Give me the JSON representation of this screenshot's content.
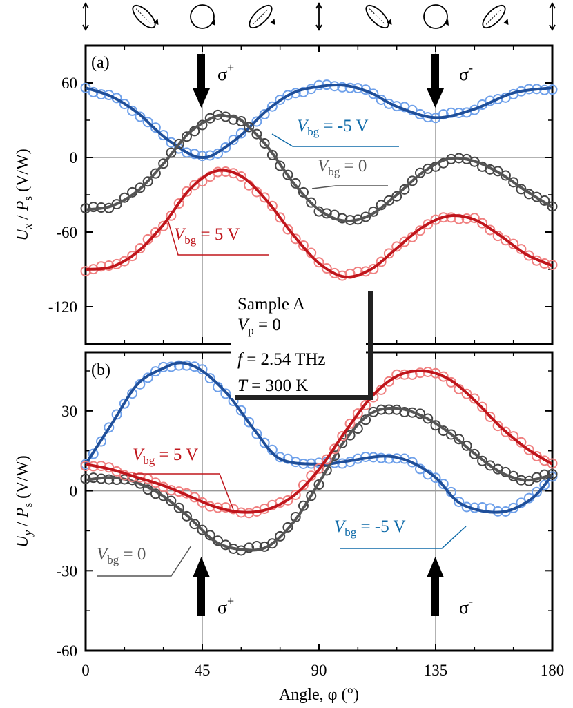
{
  "polarization_icons": [
    "linear-vertical",
    "elliptical-left",
    "circular",
    "elliptical-right",
    "linear-vertical",
    "elliptical-left",
    "circular",
    "elliptical-right",
    "linear-vertical"
  ],
  "colors": {
    "blue_line": "#1f4f9a",
    "blue_pts": "#6ea0ea",
    "gray_line": "#555555",
    "gray_pts": "#444444",
    "red_line": "#c0161c",
    "red_pts": "#f08080",
    "label_blue": "#0e6aa8",
    "label_red": "#c0161c",
    "label_gray": "#555555"
  },
  "info_box": {
    "sample": "Sample A",
    "vp": "V",
    "vp_sub": "p",
    "vp_val": " = 0",
    "f": "f",
    "f_val": " = 2.54 THz",
    "t": "T",
    "t_val": " = 300 K"
  },
  "shared_x": {
    "label": "Angle, φ (°)",
    "ticks": [
      "0",
      "45",
      "90",
      "135",
      "180"
    ],
    "range": [
      0,
      180
    ]
  },
  "arrows": {
    "sigma_plus": "σ",
    "sigma_minus": "σ",
    "plus": "+",
    "minus": "-"
  },
  "chart_data": [
    {
      "type": "scatter+line",
      "panel": "(a)",
      "ylabel_main": "U",
      "ylabel_sub": "x",
      "ylabel_mid": " / ",
      "ylabel_p": "P",
      "ylabel_psub": "s",
      "ylabel_unit": " (V/W)",
      "ylim": [
        -150,
        90
      ],
      "yticks": [
        60,
        0,
        -60,
        -120
      ],
      "ytick_labels": [
        "60",
        "0",
        "-60",
        "-120"
      ],
      "series": [
        {
          "name": "Vbg = -5 V",
          "label_v": "V",
          "label_sub": "bg",
          "label_val": " = -5 V",
          "color": "blue",
          "x": [
            0,
            10,
            20,
            30,
            40,
            45,
            50,
            60,
            70,
            80,
            90,
            100,
            110,
            120,
            135,
            150,
            165,
            180
          ],
          "y": [
            56,
            49,
            36,
            17,
            3,
            0,
            3,
            18,
            38,
            52,
            57,
            58,
            52,
            41,
            32,
            39,
            52,
            56
          ]
        },
        {
          "name": "Vbg = 0",
          "label_v": "V",
          "label_sub": "bg",
          "label_val": " = 0",
          "color": "gray",
          "x": [
            0,
            10,
            20,
            30,
            40,
            50,
            55,
            60,
            70,
            80,
            90,
            100,
            110,
            120,
            130,
            140,
            150,
            160,
            170,
            180
          ],
          "y": [
            -42,
            -39,
            -27,
            -5,
            20,
            33,
            33,
            30,
            9,
            -20,
            -42,
            -51,
            -46,
            -30,
            -12,
            -1,
            -3,
            -13,
            -27,
            -40
          ]
        },
        {
          "name": "Vbg = 5 V",
          "label_v": "V",
          "label_sub": "bg",
          "label_val": " = 5 V",
          "color": "red",
          "x": [
            0,
            10,
            20,
            30,
            40,
            50,
            60,
            70,
            80,
            90,
            100,
            110,
            120,
            130,
            140,
            150,
            160,
            170,
            180
          ],
          "y": [
            -90,
            -88,
            -76,
            -54,
            -26,
            -11,
            -15,
            -35,
            -62,
            -85,
            -96,
            -90,
            -73,
            -56,
            -47,
            -50,
            -63,
            -78,
            -87
          ]
        }
      ]
    },
    {
      "type": "scatter+line",
      "panel": "(b)",
      "ylabel_main": "U",
      "ylabel_sub": "y",
      "ylabel_mid": " / ",
      "ylabel_p": "P",
      "ylabel_psub": "s",
      "ylabel_unit": " (V/W)",
      "ylim": [
        -60,
        52
      ],
      "yticks": [
        30,
        0,
        -30,
        -60
      ],
      "ytick_labels": [
        "30",
        "0",
        "-30",
        "-60"
      ],
      "series": [
        {
          "name": "Vbg = -5 V",
          "label_v": "V",
          "label_sub": "bg",
          "label_val": " = -5 V",
          "color": "blue",
          "x": [
            0,
            10,
            20,
            30,
            37,
            45,
            55,
            65,
            75,
            90,
            100,
            115,
            125,
            135,
            145,
            160,
            172,
            180
          ],
          "y": [
            10,
            25,
            40,
            46,
            48,
            45,
            36,
            23,
            12,
            10,
            11,
            13,
            11,
            5,
            -5,
            -8,
            -3,
            6
          ]
        },
        {
          "name": "Vbg = 0",
          "label_v": "V",
          "label_sub": "bg",
          "label_val": " = 0",
          "color": "gray",
          "x": [
            0,
            10,
            20,
            30,
            40,
            50,
            60,
            70,
            80,
            90,
            100,
            110,
            120,
            130,
            140,
            150,
            160,
            170,
            180
          ],
          "y": [
            4,
            5,
            3,
            -2,
            -10,
            -19,
            -22,
            -21,
            -12,
            3,
            19,
            29,
            31,
            28,
            22,
            14,
            7,
            4,
            6
          ]
        },
        {
          "name": "Vbg = 5 V",
          "label_v": "V",
          "label_sub": "bg",
          "label_val": " = 5 V",
          "color": "red",
          "x": [
            0,
            10,
            20,
            30,
            40,
            50,
            60,
            70,
            80,
            90,
            100,
            110,
            120,
            130,
            140,
            150,
            160,
            170,
            180
          ],
          "y": [
            10,
            8,
            5,
            2,
            -2,
            -6,
            -8,
            -7,
            -2,
            8,
            22,
            35,
            43,
            45,
            42,
            34,
            24,
            16,
            10
          ]
        }
      ]
    }
  ]
}
